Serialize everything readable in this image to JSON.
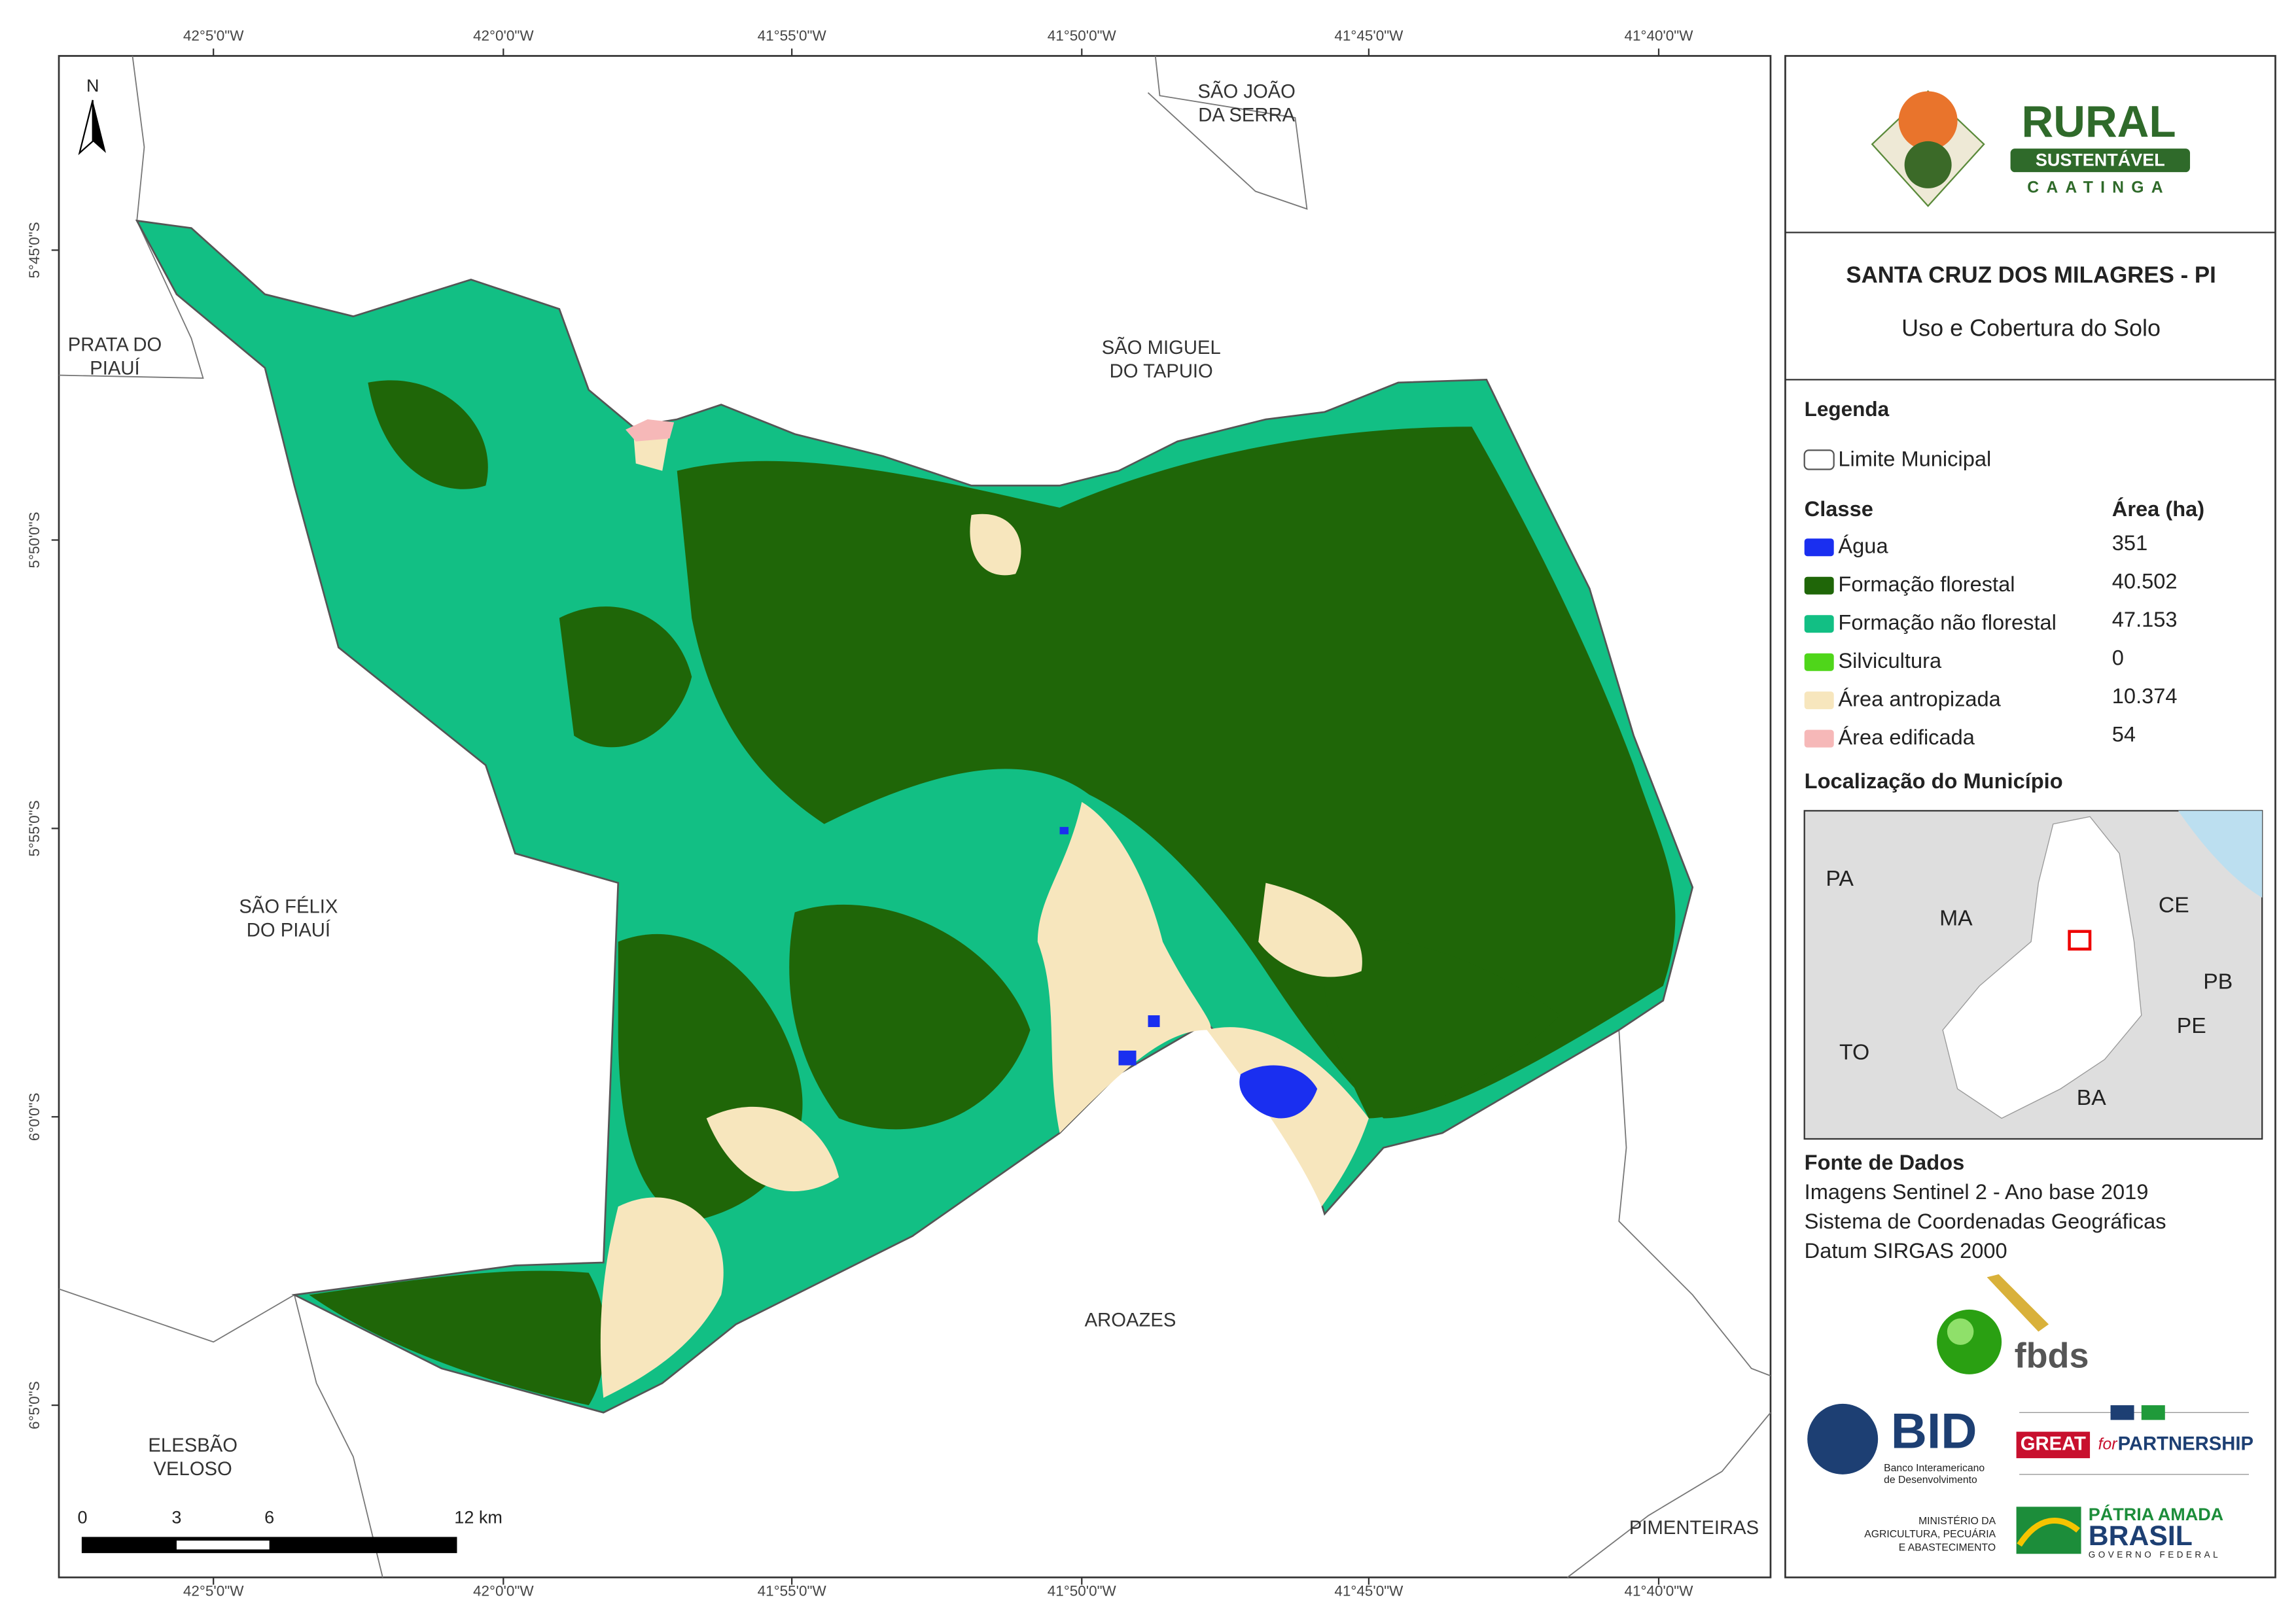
{
  "map": {
    "x_labels": [
      "42°5'0\"W",
      "42°0'0\"W",
      "41°55'0\"W",
      "41°50'0\"W",
      "41°45'0\"W",
      "41°40'0\"W"
    ],
    "y_labels": [
      "5°45'0\"S",
      "5°50'0\"S",
      "5°55'0\"S",
      "6°0'0\"S",
      "6°5'0\"S"
    ],
    "north": "N",
    "places": [
      {
        "lines": [
          "SÃO JOÃO",
          "DA SERRA"
        ]
      },
      {
        "lines": [
          "PRATA DO",
          "PIAUÍ"
        ]
      },
      {
        "lines": [
          "SÃO MIGUEL",
          "DO TAPUIO"
        ]
      },
      {
        "lines": [
          "SÃO FÉLIX",
          "DO PIAUÍ"
        ]
      },
      {
        "lines": [
          "AROAZES"
        ]
      },
      {
        "lines": [
          "ELESBÃO",
          "VELOSO"
        ]
      },
      {
        "lines": [
          "PIMENTEIRAS"
        ]
      }
    ],
    "scale_bar": [
      "0",
      "3",
      "6",
      "12 km"
    ]
  },
  "panel": {
    "title": "SANTA CRUZ DOS MILAGRES - PI",
    "subtitle": "Uso e Cobertura do Solo",
    "legend_title": "Legenda",
    "boundary": "Limite Municipal",
    "class_header": "Classe",
    "area_header": "Área (ha)",
    "classes": [
      {
        "name": "Água",
        "color": "#1a2ff0",
        "area": "351"
      },
      {
        "name": "Formação florestal",
        "color": "#1f6608",
        "area": "40.502"
      },
      {
        "name": "Formação não florestal",
        "color": "#12bf84",
        "area": "47.153"
      },
      {
        "name": "Silvicultura",
        "color": "#4fd61a",
        "area": "0"
      },
      {
        "name": "Área antropizada",
        "color": "#f7e6bd",
        "area": "10.374"
      },
      {
        "name": "Área edificada",
        "color": "#f6b8b8",
        "area": "54"
      }
    ],
    "location_title": "Localização do Município",
    "location_labels": [
      "PA",
      "MA",
      "CE",
      "PB",
      "PE",
      "TO",
      "BA"
    ],
    "source_title": "Fonte de Dados",
    "source_lines": [
      "Imagens Sentinel 2 - Ano base 2019",
      "Sistema de Coordenadas Geográficas",
      "Datum SIRGAS 2000"
    ]
  },
  "logos": {
    "rural": [
      "RURAL",
      "SUSTENTÁVEL",
      "CAATINGA"
    ],
    "fbds": "fbds",
    "bid": "BID",
    "bid_lines": [
      "Banco Interamericano",
      "de Desenvolvimento"
    ],
    "great": [
      "GREAT",
      "for",
      "PARTNERSHIP"
    ],
    "ministry_lines": [
      "MINISTÉRIO DA",
      "AGRICULTURA, PECUÁRIA",
      "E ABASTECIMENTO"
    ],
    "brasil": [
      "PÁTRIA AMADA",
      "BRASIL",
      "GOVERNO FEDERAL"
    ]
  }
}
